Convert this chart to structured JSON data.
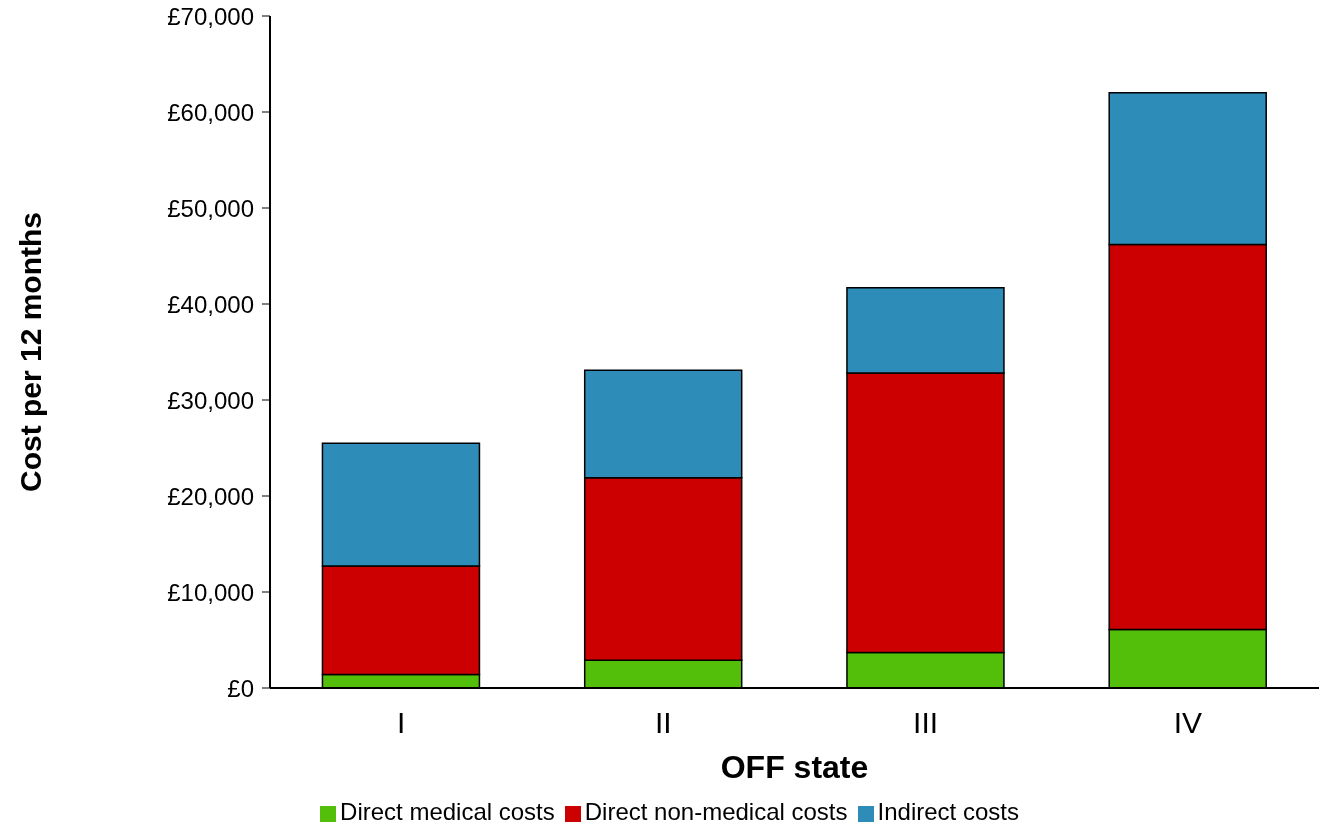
{
  "chart_data": {
    "type": "bar",
    "stacked": true,
    "xlabel": "OFF state",
    "ylabel": "Cost per 12 months",
    "categories": [
      "I",
      "II",
      "III",
      "IV"
    ],
    "series": [
      {
        "name": "Direct medical costs",
        "color": "#53bf0a",
        "values": [
          1400,
          2900,
          3700,
          6100
        ]
      },
      {
        "name": "Direct non-medical costs",
        "color": "#cc0000",
        "values": [
          11300,
          19000,
          29100,
          40100
        ]
      },
      {
        "name": "Indirect costs",
        "color": "#2e8cb8",
        "values": [
          12800,
          11200,
          8900,
          15800
        ]
      }
    ],
    "ylim": [
      0,
      70000
    ],
    "yticks": [
      {
        "value": 0,
        "label": "£0"
      },
      {
        "value": 10000,
        "label": "£10,000"
      },
      {
        "value": 20000,
        "label": "£20,000"
      },
      {
        "value": 30000,
        "label": "£30,000"
      },
      {
        "value": 40000,
        "label": "£40,000"
      },
      {
        "value": 50000,
        "label": "£50,000"
      },
      {
        "value": 60000,
        "label": "£60,000"
      },
      {
        "value": 70000,
        "label": "£70,000"
      }
    ],
    "grid": false,
    "legend": "bottom"
  }
}
